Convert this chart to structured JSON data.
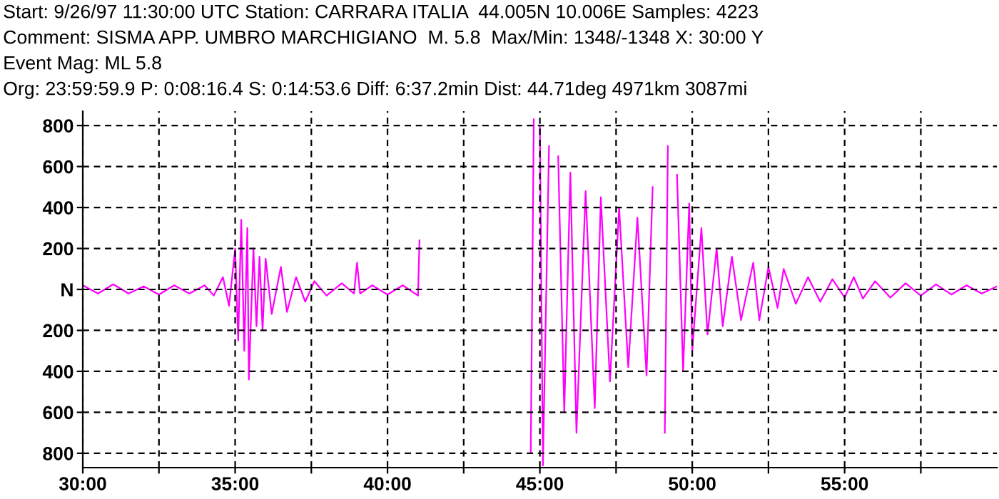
{
  "chart_data": {
    "type": "line",
    "title": "Start: 9/26/97 11:30:00 UTC Station: CARRARA ITALIA  44.005N 10.006E Samples: 4223",
    "subtitle": "Comment: SISMA APP. UMBRO MARCHIGIANO  M. 5.8  Max/Min: 1348/-1348 X: 30:00 Y",
    "annotations": [
      "Event Mag: ML 5.8",
      "Org: 23:59:59.9 P: 0:08:16.4 S: 0:14:53.6 Diff: 6:37.2min Dist: 44.71deg 4971km 3087mi"
    ],
    "series": [
      {
        "color": "#ff00ff",
        "x": [
          30.0,
          30.5,
          31,
          31.5,
          32,
          32.5,
          33,
          33.5,
          34,
          34.3,
          34.6,
          34.8,
          35.0,
          35.1,
          35.2,
          35.3,
          35.4,
          35.45,
          35.6,
          35.7,
          35.8,
          35.9,
          36.0,
          36.2,
          36.5,
          36.7,
          37.0,
          37.3,
          37.6,
          38.0,
          38.5,
          38.9,
          39.0,
          39.1,
          39.5,
          40,
          40.5,
          41.0,
          41.05,
          41.1,
          41.15,
          41.5,
          42,
          42.5,
          43,
          43.5,
          44,
          44.5,
          44.6,
          44.7,
          44.8,
          44.9,
          45.0,
          45.1,
          45.3,
          45.5,
          45.6,
          45.8,
          46.0,
          46.2,
          46.5,
          46.8,
          47.0,
          47.3,
          47.6,
          47.9,
          48.2,
          48.5,
          48.7,
          48.9,
          49.0,
          49.1,
          49.2,
          49.3,
          49.5,
          49.7,
          49.9,
          50.0,
          50.3,
          50.5,
          50.8,
          51.0,
          51.3,
          51.6,
          52.0,
          52.2,
          52.5,
          52.8,
          53.0,
          53.4,
          53.8,
          54.2,
          54.6,
          55.0,
          55.3,
          55.6,
          56.0,
          56.5,
          57.0,
          57.5,
          58.0,
          58.5,
          59.0,
          59.5,
          60
        ],
        "values": [
          20,
          -20,
          25,
          -20,
          15,
          -25,
          20,
          -20,
          20,
          -30,
          60,
          -80,
          200,
          -250,
          340,
          -300,
          300,
          -440,
          200,
          -180,
          160,
          -200,
          150,
          -120,
          110,
          -110,
          60,
          -60,
          40,
          -30,
          30,
          -20,
          130,
          -20,
          20,
          -25,
          20,
          -30,
          240,
          null,
          null,
          null,
          null,
          null,
          null,
          null,
          null,
          null,
          null,
          -800,
          830,
          null,
          800,
          -860,
          700,
          null,
          650,
          -600,
          570,
          -700,
          480,
          -580,
          450,
          -450,
          400,
          -380,
          350,
          -420,
          500,
          null,
          null,
          -700,
          700,
          null,
          560,
          -400,
          420,
          -300,
          300,
          -220,
          200,
          -180,
          160,
          -150,
          130,
          -150,
          110,
          -90,
          100,
          -70,
          60,
          -60,
          50,
          -40,
          60,
          -45,
          40,
          -40,
          30,
          -30,
          25,
          -25,
          20,
          -20,
          15
        ]
      }
    ],
    "xlim": [
      30,
      60
    ],
    "xticks": [
      {
        "value": 30,
        "label": "30:00"
      },
      {
        "value": 32.5,
        "label": null
      },
      {
        "value": 35,
        "label": "35:00"
      },
      {
        "value": 37.5,
        "label": null
      },
      {
        "value": 40,
        "label": "40:00"
      },
      {
        "value": 42.5,
        "label": null
      },
      {
        "value": 45,
        "label": "45:00"
      },
      {
        "value": 47.5,
        "label": null
      },
      {
        "value": 50,
        "label": "50:00"
      },
      {
        "value": 52.5,
        "label": null
      },
      {
        "value": 55,
        "label": "55:00"
      },
      {
        "value": 57.5,
        "label": null
      }
    ],
    "ylim": [
      -870,
      870
    ],
    "yticks": [
      {
        "value": 800,
        "label": "800"
      },
      {
        "value": 600,
        "label": "600"
      },
      {
        "value": 400,
        "label": "400"
      },
      {
        "value": 200,
        "label": "200"
      },
      {
        "value": 0,
        "label": "N"
      },
      {
        "value": -200,
        "label": "200"
      },
      {
        "value": -400,
        "label": "400"
      },
      {
        "value": -600,
        "label": "600"
      },
      {
        "value": -800,
        "label": "800"
      }
    ],
    "grid": true,
    "line_style": "solid",
    "legend": false
  }
}
